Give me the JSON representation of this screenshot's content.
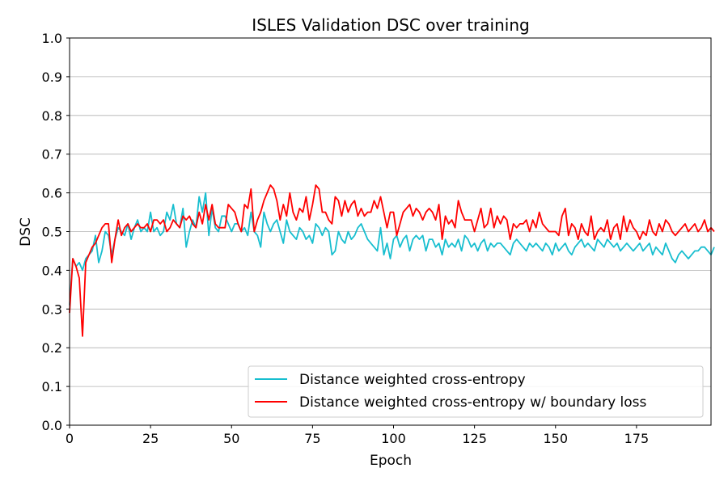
{
  "chart_data": {
    "type": "line",
    "title": "ISLES Validation DSC over training",
    "xlabel": "Epoch",
    "ylabel": "DSC",
    "xlim": [
      0,
      198
    ],
    "ylim": [
      0.0,
      1.0
    ],
    "x_ticks": [
      0,
      25,
      50,
      75,
      100,
      125,
      150,
      175
    ],
    "y_ticks": [
      0.0,
      0.1,
      0.2,
      0.3,
      0.4,
      0.5,
      0.6,
      0.7,
      0.8,
      0.9,
      1.0
    ],
    "grid": "horizontal",
    "legend_position": "lower-right",
    "series": [
      {
        "name": "Distance weighted cross-entropy",
        "color": "#17becf",
        "values": [
          0.31,
          0.43,
          0.41,
          0.42,
          0.4,
          0.43,
          0.44,
          0.45,
          0.49,
          0.42,
          0.45,
          0.5,
          0.49,
          0.44,
          0.48,
          0.51,
          0.5,
          0.49,
          0.52,
          0.48,
          0.51,
          0.53,
          0.5,
          0.51,
          0.5,
          0.55,
          0.5,
          0.51,
          0.49,
          0.5,
          0.55,
          0.53,
          0.57,
          0.52,
          0.51,
          0.56,
          0.46,
          0.5,
          0.53,
          0.51,
          0.59,
          0.55,
          0.6,
          0.49,
          0.56,
          0.51,
          0.5,
          0.54,
          0.54,
          0.52,
          0.5,
          0.52,
          0.52,
          0.5,
          0.51,
          0.49,
          0.55,
          0.5,
          0.49,
          0.46,
          0.55,
          0.52,
          0.5,
          0.52,
          0.53,
          0.5,
          0.47,
          0.53,
          0.5,
          0.49,
          0.48,
          0.51,
          0.5,
          0.48,
          0.49,
          0.47,
          0.52,
          0.51,
          0.49,
          0.51,
          0.5,
          0.44,
          0.45,
          0.5,
          0.48,
          0.47,
          0.5,
          0.48,
          0.49,
          0.51,
          0.52,
          0.5,
          0.48,
          0.47,
          0.46,
          0.45,
          0.51,
          0.44,
          0.47,
          0.43,
          0.48,
          0.49,
          0.46,
          0.48,
          0.49,
          0.45,
          0.48,
          0.49,
          0.48,
          0.49,
          0.45,
          0.48,
          0.48,
          0.46,
          0.47,
          0.44,
          0.48,
          0.46,
          0.47,
          0.46,
          0.48,
          0.45,
          0.49,
          0.48,
          0.46,
          0.47,
          0.45,
          0.47,
          0.48,
          0.45,
          0.47,
          0.46,
          0.47,
          0.47,
          0.46,
          0.45,
          0.44,
          0.47,
          0.48,
          0.47,
          0.46,
          0.45,
          0.47,
          0.46,
          0.47,
          0.46,
          0.45,
          0.47,
          0.46,
          0.44,
          0.47,
          0.45,
          0.46,
          0.47,
          0.45,
          0.44,
          0.46,
          0.47,
          0.48,
          0.46,
          0.47,
          0.46,
          0.45,
          0.48,
          0.47,
          0.46,
          0.48,
          0.47,
          0.46,
          0.47,
          0.45,
          0.46,
          0.47,
          0.46,
          0.45,
          0.46,
          0.47,
          0.45,
          0.46,
          0.47,
          0.44,
          0.46,
          0.45,
          0.44,
          0.47,
          0.45,
          0.43,
          0.42,
          0.44,
          0.45,
          0.44,
          0.43,
          0.44,
          0.45,
          0.45,
          0.46,
          0.46,
          0.45,
          0.44,
          0.46
        ]
      },
      {
        "name": "Distance weighted cross-entropy w/ boundary loss",
        "color": "#ff0000",
        "values": [
          0.29,
          0.43,
          0.41,
          0.38,
          0.23,
          0.42,
          0.44,
          0.46,
          0.47,
          0.49,
          0.51,
          0.52,
          0.52,
          0.42,
          0.48,
          0.53,
          0.49,
          0.51,
          0.52,
          0.5,
          0.51,
          0.52,
          0.51,
          0.51,
          0.52,
          0.5,
          0.53,
          0.53,
          0.52,
          0.53,
          0.5,
          0.51,
          0.53,
          0.52,
          0.51,
          0.54,
          0.53,
          0.54,
          0.52,
          0.51,
          0.55,
          0.52,
          0.57,
          0.53,
          0.57,
          0.52,
          0.51,
          0.51,
          0.51,
          0.57,
          0.56,
          0.55,
          0.52,
          0.5,
          0.57,
          0.56,
          0.61,
          0.5,
          0.53,
          0.55,
          0.58,
          0.6,
          0.62,
          0.61,
          0.58,
          0.53,
          0.57,
          0.54,
          0.6,
          0.55,
          0.53,
          0.56,
          0.55,
          0.59,
          0.53,
          0.57,
          0.62,
          0.61,
          0.55,
          0.55,
          0.53,
          0.52,
          0.59,
          0.58,
          0.54,
          0.58,
          0.55,
          0.57,
          0.58,
          0.54,
          0.56,
          0.54,
          0.55,
          0.55,
          0.58,
          0.56,
          0.59,
          0.55,
          0.51,
          0.55,
          0.55,
          0.49,
          0.52,
          0.55,
          0.56,
          0.57,
          0.54,
          0.56,
          0.55,
          0.53,
          0.55,
          0.56,
          0.55,
          0.53,
          0.57,
          0.48,
          0.54,
          0.52,
          0.53,
          0.51,
          0.58,
          0.55,
          0.53,
          0.53,
          0.53,
          0.5,
          0.53,
          0.56,
          0.51,
          0.52,
          0.56,
          0.51,
          0.54,
          0.52,
          0.54,
          0.53,
          0.48,
          0.52,
          0.51,
          0.52,
          0.52,
          0.53,
          0.5,
          0.53,
          0.51,
          0.55,
          0.52,
          0.51,
          0.5,
          0.5,
          0.5,
          0.49,
          0.54,
          0.56,
          0.49,
          0.52,
          0.51,
          0.48,
          0.52,
          0.5,
          0.49,
          0.54,
          0.48,
          0.5,
          0.51,
          0.5,
          0.53,
          0.48,
          0.51,
          0.52,
          0.48,
          0.54,
          0.5,
          0.53,
          0.51,
          0.5,
          0.48,
          0.5,
          0.49,
          0.53,
          0.5,
          0.49,
          0.52,
          0.5,
          0.53,
          0.52,
          0.5,
          0.49,
          0.5,
          0.51,
          0.52,
          0.5,
          0.51,
          0.52,
          0.5,
          0.51,
          0.53,
          0.5,
          0.51,
          0.5
        ]
      }
    ]
  }
}
